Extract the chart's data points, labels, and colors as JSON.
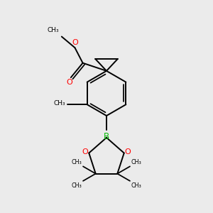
{
  "background_color": "#ebebeb",
  "bond_color": "#000000",
  "oxygen_color": "#ff0000",
  "boron_color": "#00bb00",
  "line_width": 1.4,
  "figsize": [
    3.0,
    3.0
  ],
  "dpi": 100,
  "xlim": [
    -2.5,
    2.5
  ],
  "ylim": [
    -4.5,
    3.5
  ]
}
